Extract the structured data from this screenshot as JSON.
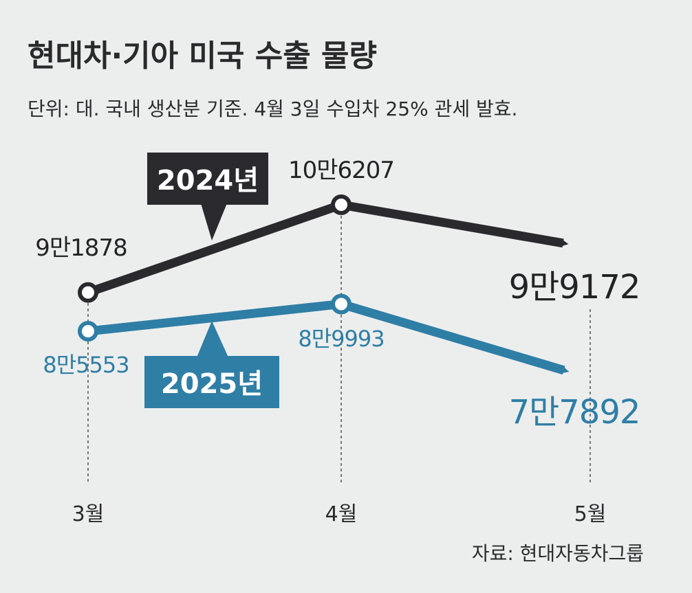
{
  "title": "현대차·기아 미국 수출 물량",
  "subtitle": "단위: 대. 국내 생산분 기준. 4월 3일 수입차 25% 관세 발효.",
  "source": "자료: 현대자동차그룹",
  "colors": {
    "series_2024": "#2a2a2e",
    "series_2025": "#2f7ea6",
    "background": "#eceeed"
  },
  "chart_data": {
    "type": "line",
    "title": "현대차·기아 미국 수출 물량",
    "categories": [
      "3월",
      "4월",
      "5월"
    ],
    "ylabel": "대",
    "ylim": [
      70000,
      110000
    ],
    "grid": false,
    "series": [
      {
        "name": "2024년",
        "values": [
          91878,
          106207,
          99172
        ],
        "labels": [
          "9만1878",
          "10만6207",
          "9만9172"
        ]
      },
      {
        "name": "2025년",
        "values": [
          85553,
          89993,
          77892
        ],
        "labels": [
          "8만5553",
          "8만9993",
          "7만7892"
        ]
      }
    ]
  }
}
